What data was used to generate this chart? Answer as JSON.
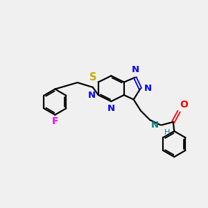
{
  "background_color": "#f0f0f0",
  "bond_color": "#000000",
  "N_color": "#0000ff",
  "O_color": "#ff0000",
  "S_color": "#ccaa00",
  "F_color": "#ff00ff",
  "H_color": "#008080",
  "figsize": [
    3.0,
    3.0
  ],
  "dpi": 100,
  "xlim": [
    0,
    10
  ],
  "ylim": [
    0,
    10
  ]
}
